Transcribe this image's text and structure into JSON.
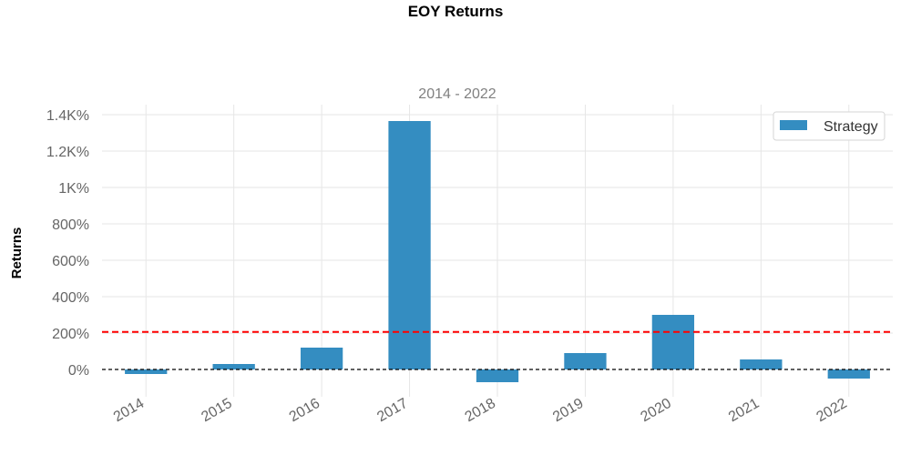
{
  "chart_data": {
    "type": "bar",
    "title": "EOY Returns",
    "subtitle": "2014 - 2022",
    "xlabel": "",
    "ylabel": "Returns",
    "categories": [
      "2014",
      "2015",
      "2016",
      "2017",
      "2018",
      "2019",
      "2020",
      "2021",
      "2022"
    ],
    "series": [
      {
        "name": "Strategy",
        "color": "#348dc1",
        "values": [
          -25,
          30,
          120,
          1365,
          -70,
          90,
          300,
          55,
          -50
        ]
      }
    ],
    "reference_lines": [
      {
        "value": 206,
        "color": "#ff0000",
        "style": "dashed"
      },
      {
        "value": 0,
        "color": "#000000",
        "style": "dashed"
      }
    ],
    "ylim": [
      -140,
      1460
    ],
    "yticks": [
      0,
      200,
      400,
      600,
      800,
      1000,
      1200,
      1400
    ],
    "ytick_labels": [
      "0%",
      "200%",
      "400%",
      "600%",
      "800%",
      "1K%",
      "1.2K%",
      "1.4K%"
    ],
    "grid": true,
    "legend_position": "top-right"
  }
}
